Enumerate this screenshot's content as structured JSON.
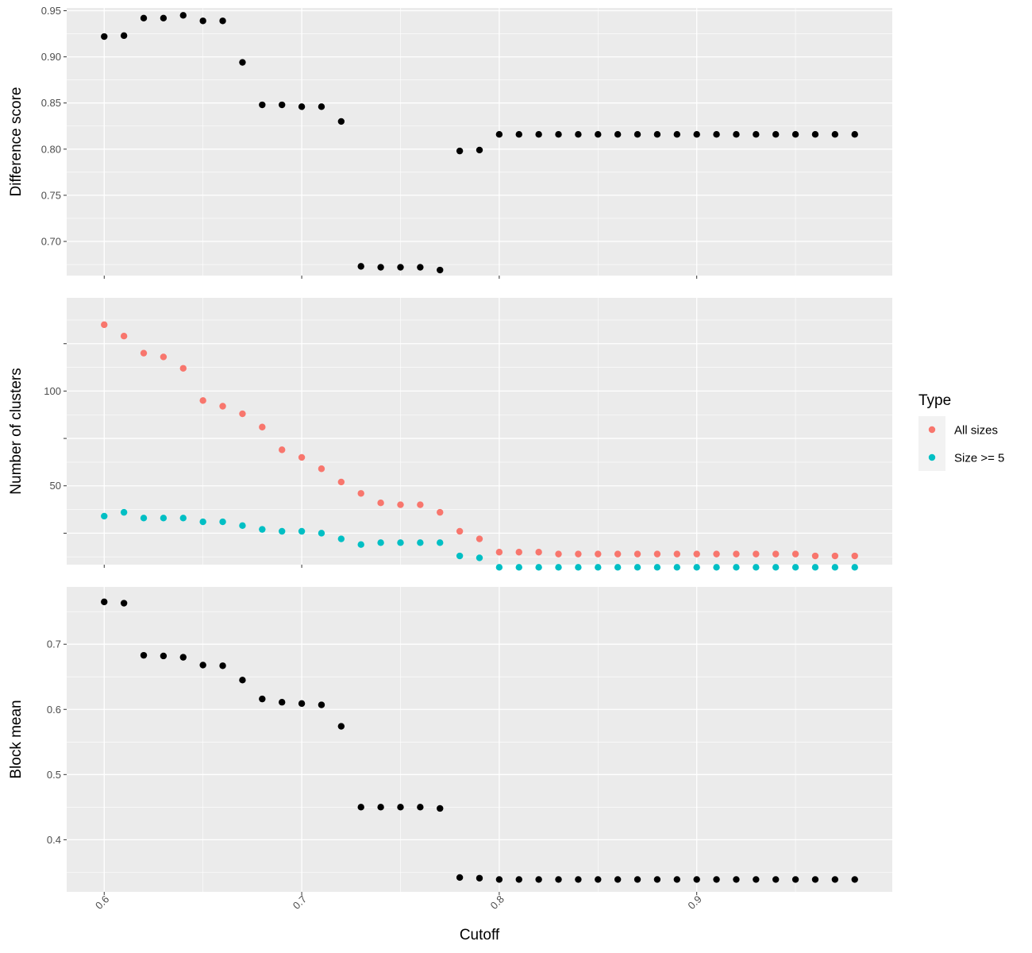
{
  "chart_data": [
    {
      "type": "scatter",
      "ylabel": "Difference score",
      "ylim": [
        0.663,
        0.953
      ],
      "yticks": [
        0.7,
        0.75,
        0.8,
        0.85,
        0.9,
        0.95
      ],
      "ytick_labels": [
        "0.70",
        "0.75",
        "0.80",
        "0.85",
        "0.90",
        "0.95"
      ],
      "grid": true,
      "point_color": "#000000",
      "series": [
        {
          "x": [
            0.6,
            0.61,
            0.62,
            0.63,
            0.64,
            0.65,
            0.66,
            0.67,
            0.68,
            0.69,
            0.7,
            0.71,
            0.72,
            0.73,
            0.74,
            0.75,
            0.76,
            0.77,
            0.78,
            0.79,
            0.8,
            0.81,
            0.82,
            0.83,
            0.84,
            0.85,
            0.86,
            0.87,
            0.88,
            0.89,
            0.9,
            0.91,
            0.92,
            0.93,
            0.94,
            0.95,
            0.96,
            0.97,
            0.98
          ],
          "y": [
            0.922,
            0.923,
            0.942,
            0.942,
            0.945,
            0.939,
            0.939,
            0.894,
            0.848,
            0.848,
            0.846,
            0.846,
            0.83,
            0.673,
            0.672,
            0.672,
            0.672,
            0.669,
            0.798,
            0.799,
            0.816,
            0.816,
            0.816,
            0.816,
            0.816,
            0.816,
            0.816,
            0.816,
            0.816,
            0.816,
            0.816,
            0.816,
            0.816,
            0.816,
            0.816,
            0.816,
            0.816,
            0.816,
            0.816
          ]
        }
      ]
    },
    {
      "type": "scatter",
      "ylabel": "Number of clusters",
      "ylim": [
        8.4,
        149.2
      ],
      "yticks": [
        25,
        50,
        75,
        100,
        125
      ],
      "ytick_labels": [
        "",
        "50",
        "",
        "100",
        ""
      ],
      "grid": true,
      "legend": {
        "title": "Type",
        "placement": "right"
      },
      "series": [
        {
          "name": "All sizes",
          "color": "#F8766D",
          "x": [
            0.6,
            0.61,
            0.62,
            0.63,
            0.64,
            0.65,
            0.66,
            0.67,
            0.68,
            0.69,
            0.7,
            0.71,
            0.72,
            0.73,
            0.74,
            0.75,
            0.76,
            0.77,
            0.78,
            0.79,
            0.8,
            0.81,
            0.82,
            0.83,
            0.84,
            0.85,
            0.86,
            0.87,
            0.88,
            0.89,
            0.9,
            0.91,
            0.92,
            0.93,
            0.94,
            0.95,
            0.96,
            0.97,
            0.98
          ],
          "y": [
            135,
            129,
            120,
            118,
            112,
            95,
            92,
            88,
            81,
            69,
            65,
            59,
            52,
            46,
            41,
            40,
            40,
            36,
            26,
            22,
            15,
            15,
            15,
            14,
            14,
            14,
            14,
            14,
            14,
            14,
            14,
            14,
            14,
            14,
            14,
            14,
            13,
            13,
            13
          ]
        },
        {
          "name": "Size >= 5",
          "color": "#00BFC4",
          "x": [
            0.6,
            0.61,
            0.62,
            0.63,
            0.64,
            0.65,
            0.66,
            0.67,
            0.68,
            0.69,
            0.7,
            0.71,
            0.72,
            0.73,
            0.74,
            0.75,
            0.76,
            0.77,
            0.78,
            0.79,
            0.8,
            0.81,
            0.82,
            0.83,
            0.84,
            0.85,
            0.86,
            0.87,
            0.88,
            0.89,
            0.9,
            0.91,
            0.92,
            0.93,
            0.94,
            0.95,
            0.96,
            0.97,
            0.98
          ],
          "y": [
            34,
            36,
            33,
            33,
            33,
            31,
            31,
            29,
            27,
            26,
            26,
            25,
            22,
            19,
            20,
            20,
            20,
            20,
            13,
            12,
            7,
            7,
            7,
            7,
            7,
            7,
            7,
            7,
            7,
            7,
            7,
            7,
            7,
            7,
            7,
            7,
            7,
            7,
            7
          ]
        }
      ]
    },
    {
      "type": "scatter",
      "ylabel": "Block mean",
      "xlabel": "Cutoff",
      "xlim": [
        0.581,
        0.999
      ],
      "xticks": [
        0.6,
        0.7,
        0.8,
        0.9
      ],
      "xtick_labels": [
        "0.6",
        "0.7",
        "0.8",
        "0.9"
      ],
      "ylim": [
        0.32,
        0.788
      ],
      "yticks": [
        0.4,
        0.5,
        0.6,
        0.7
      ],
      "ytick_labels": [
        "0.4",
        "0.5",
        "0.6",
        "0.7"
      ],
      "grid": true,
      "point_color": "#000000",
      "series": [
        {
          "x": [
            0.6,
            0.61,
            0.62,
            0.63,
            0.64,
            0.65,
            0.66,
            0.67,
            0.68,
            0.69,
            0.7,
            0.71,
            0.72,
            0.73,
            0.74,
            0.75,
            0.76,
            0.77,
            0.78,
            0.79,
            0.8,
            0.81,
            0.82,
            0.83,
            0.84,
            0.85,
            0.86,
            0.87,
            0.88,
            0.89,
            0.9,
            0.91,
            0.92,
            0.93,
            0.94,
            0.95,
            0.96,
            0.97,
            0.98
          ],
          "y": [
            0.765,
            0.763,
            0.683,
            0.682,
            0.68,
            0.668,
            0.667,
            0.645,
            0.616,
            0.611,
            0.609,
            0.607,
            0.574,
            0.45,
            0.45,
            0.45,
            0.45,
            0.448,
            0.342,
            0.341,
            0.339,
            0.339,
            0.339,
            0.339,
            0.339,
            0.339,
            0.339,
            0.339,
            0.339,
            0.339,
            0.339,
            0.339,
            0.339,
            0.339,
            0.339,
            0.339,
            0.339,
            0.339,
            0.339
          ]
        }
      ]
    }
  ]
}
